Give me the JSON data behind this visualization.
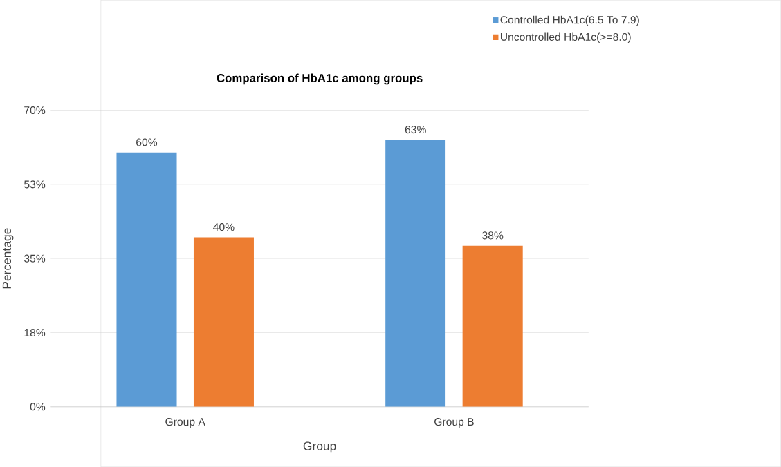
{
  "chart_data": {
    "type": "bar",
    "title": "Comparison of HbA1c among groups",
    "xlabel": "Group",
    "ylabel": "Percentage",
    "categories": [
      "Group A",
      "Group B"
    ],
    "series": [
      {
        "name": "Controlled HbA1c(6.5 To 7.9)",
        "color": "#5b9bd5",
        "values": [
          60,
          63
        ],
        "value_labels": [
          "60%",
          "63%"
        ]
      },
      {
        "name": "Uncontrolled HbA1c(>=8.0)",
        "color": "#ed7d31",
        "values": [
          40,
          38
        ],
        "value_labels": [
          "40%",
          "38%"
        ]
      }
    ],
    "ylim": [
      0,
      70
    ],
    "yticks": [
      {
        "value": 0,
        "label": "0%"
      },
      {
        "value": 17.5,
        "label": "18%"
      },
      {
        "value": 35,
        "label": "35%"
      },
      {
        "value": 52.5,
        "label": "53%"
      },
      {
        "value": 70,
        "label": "70%"
      }
    ],
    "grid": "y",
    "legend": "top right"
  }
}
